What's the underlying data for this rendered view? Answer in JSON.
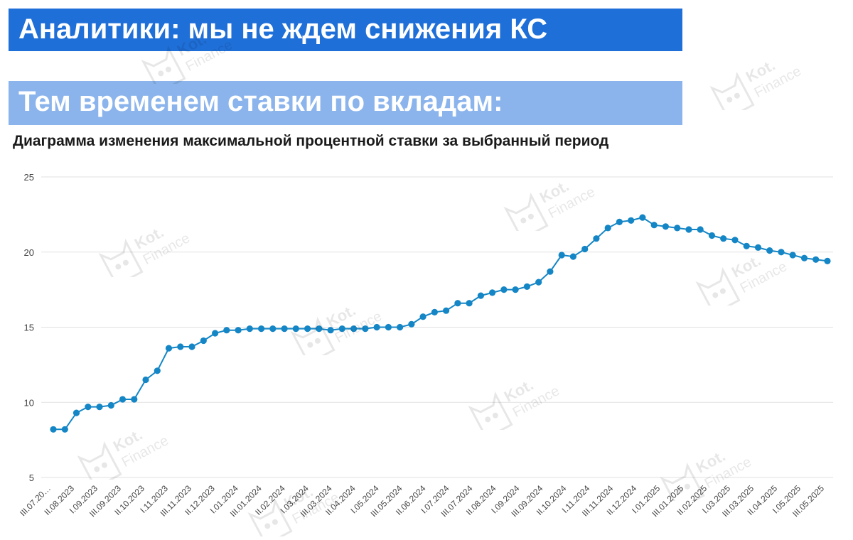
{
  "banners": {
    "headline": "Аналитики: мы не ждем снижения КС",
    "subheadline": "Тем временем ставки по вкладам:"
  },
  "watermark": {
    "line1": "Kot.",
    "line2": "Finance"
  },
  "colors": {
    "banner_primary": "#1f6fd8",
    "banner_secondary": "#8bb4ec",
    "series": "#1486c6",
    "grid": "#e2e2e2"
  },
  "chart_data": {
    "type": "line",
    "title": "Диаграмма изменения максимальной процентной ставки за выбранный период",
    "xlabel": "",
    "ylabel": "",
    "ylim": [
      5,
      25
    ],
    "yticks": [
      5,
      10,
      15,
      20,
      25
    ],
    "grid": true,
    "legend": "none",
    "x_tick_labels": [
      "III.07.20…",
      "II.08.2023",
      "I.09.2023",
      "III.09.2023",
      "II.10.2023",
      "I.11.2023",
      "III.11.2023",
      "II.12.2023",
      "I.01.2024",
      "III.01.2024",
      "II.02.2024",
      "I.03.2024",
      "III.03.2024",
      "II.04.2024",
      "I.05.2024",
      "III.05.2024",
      "II.06.2024",
      "I.07.2024",
      "III.07.2024",
      "II.08.2024",
      "I.09.2024",
      "III.09.2024",
      "II.10.2024",
      "I.11.2024",
      "III.11.2024",
      "II.12.2024",
      "I.01.2025",
      "III.01.2025",
      "II.02.2025",
      "I.03.2025",
      "III.03.2025",
      "II.04.2025",
      "I.05.2025",
      "III.05.2025"
    ],
    "series": [
      {
        "values": [
          8.2,
          8.2,
          9.3,
          9.7,
          9.7,
          9.8,
          10.2,
          10.2,
          11.5,
          12.1,
          13.6,
          13.7,
          13.7,
          14.1,
          14.6,
          14.8,
          14.8,
          14.9,
          14.9,
          14.9,
          14.9,
          14.9,
          14.9,
          14.9,
          14.8,
          14.9,
          14.9,
          14.9,
          15.0,
          15.0,
          15.0,
          15.2,
          15.7,
          16.0,
          16.1,
          16.6,
          16.6,
          17.1,
          17.3,
          17.5,
          17.5,
          17.7,
          18.0,
          18.7,
          19.8,
          19.7,
          20.2,
          20.9,
          21.6,
          22.0,
          22.1,
          22.3,
          21.8,
          21.7,
          21.6,
          21.5,
          21.5,
          21.1,
          20.9,
          20.8,
          20.4,
          20.3,
          20.1,
          20.0,
          19.8,
          19.6,
          19.5,
          19.4
        ]
      }
    ]
  }
}
